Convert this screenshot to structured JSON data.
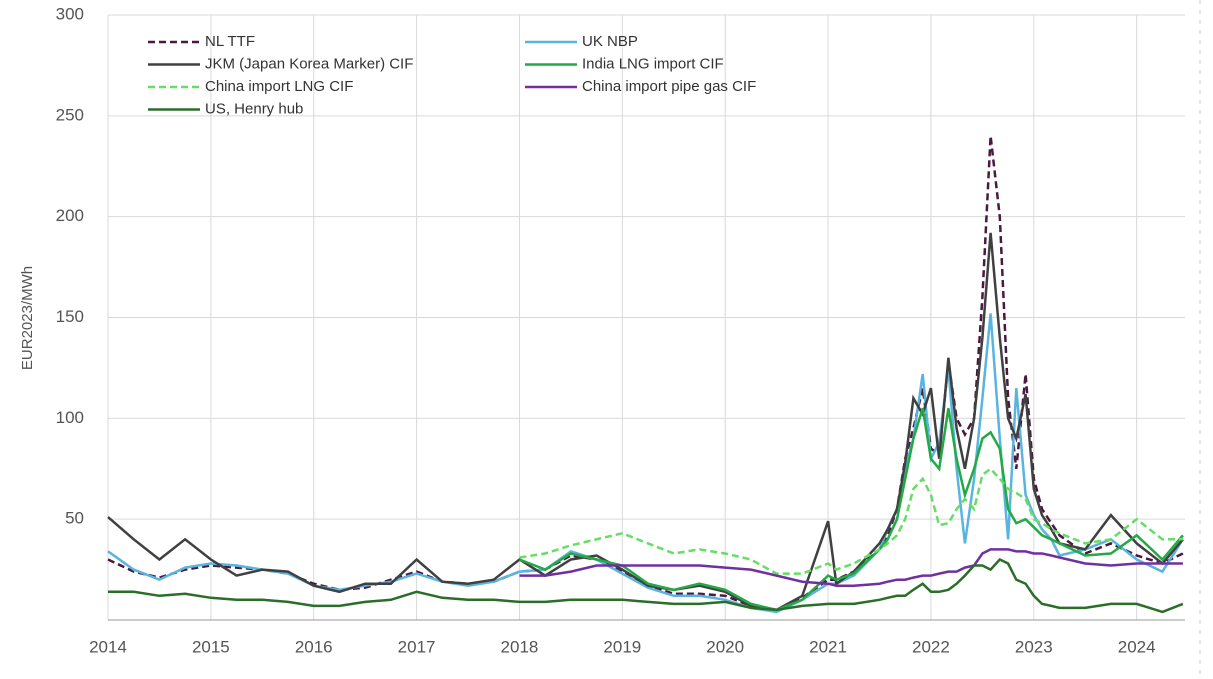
{
  "chart_data": {
    "type": "line",
    "y_label": "EUR2023/MWh",
    "x": [
      2014,
      2014.25,
      2014.5,
      2014.75,
      2015,
      2015.25,
      2015.5,
      2015.75,
      2016,
      2016.25,
      2016.5,
      2016.75,
      2017,
      2017.25,
      2017.5,
      2017.75,
      2018,
      2018.25,
      2018.5,
      2018.75,
      2019,
      2019.25,
      2019.5,
      2019.75,
      2020,
      2020.25,
      2020.5,
      2020.75,
      2021,
      2021.08,
      2021.25,
      2021.5,
      2021.58,
      2021.67,
      2021.75,
      2021.83,
      2021.92,
      2022,
      2022.08,
      2022.17,
      2022.25,
      2022.33,
      2022.42,
      2022.5,
      2022.58,
      2022.67,
      2022.75,
      2022.83,
      2022.92,
      2023,
      2023.08,
      2023.17,
      2023.25,
      2023.5,
      2023.75,
      2024,
      2024.25,
      2024.45
    ],
    "xlim": [
      2014,
      2024.47
    ],
    "xticks": [
      2014,
      2015,
      2016,
      2017,
      2018,
      2019,
      2020,
      2021,
      2022,
      2023,
      2024
    ],
    "ylim": [
      0,
      300
    ],
    "yticks": [
      50,
      100,
      150,
      200,
      250,
      300
    ],
    "grid": true,
    "series": [
      {
        "name": "NL TTF",
        "color": "#4a1942",
        "dashed": true,
        "values": [
          30,
          24,
          21,
          25,
          27,
          26,
          25,
          23,
          18,
          15,
          16,
          20,
          24,
          19,
          18,
          19,
          24,
          25,
          32,
          30,
          24,
          17,
          13,
          13,
          12,
          7,
          5,
          11,
          20,
          20,
          24,
          35,
          42,
          55,
          80,
          95,
          115,
          85,
          82,
          128,
          100,
          92,
          100,
          160,
          240,
          200,
          110,
          75,
          122,
          70,
          55,
          48,
          42,
          33,
          38,
          32,
          28,
          33
        ]
      },
      {
        "name": "UK NBP",
        "color": "#5ab4e0",
        "dashed": false,
        "values": [
          34,
          25,
          20,
          26,
          28,
          27,
          25,
          23,
          17,
          15,
          17,
          19,
          23,
          19,
          17,
          19,
          24,
          25,
          34,
          30,
          23,
          16,
          12,
          12,
          10,
          6,
          4,
          10,
          18,
          18,
          22,
          35,
          45,
          55,
          75,
          90,
          122,
          80,
          88,
          125,
          75,
          38,
          70,
          110,
          152,
          90,
          40,
          115,
          62,
          52,
          45,
          40,
          32,
          35,
          40,
          30,
          24,
          40
        ]
      },
      {
        "name": "JKM (Japan Korea Marker) CIF",
        "color": "#404040",
        "dashed": false,
        "values": [
          51,
          40,
          30,
          40,
          30,
          22,
          25,
          24,
          17,
          14,
          18,
          18,
          30,
          19,
          18,
          20,
          30,
          22,
          30,
          32,
          25,
          17,
          15,
          17,
          14,
          7,
          5,
          12,
          49,
          18,
          24,
          38,
          45,
          55,
          78,
          110,
          102,
          115,
          80,
          130,
          95,
          75,
          100,
          140,
          192,
          140,
          100,
          90,
          112,
          65,
          52,
          45,
          38,
          35,
          52,
          38,
          28,
          40
        ]
      },
      {
        "name": "India LNG import CIF",
        "color": "#22aa44",
        "dashed": false,
        "values": [
          null,
          null,
          null,
          null,
          null,
          null,
          null,
          null,
          null,
          null,
          null,
          null,
          null,
          null,
          null,
          null,
          30,
          25,
          33,
          30,
          27,
          18,
          15,
          18,
          15,
          8,
          5,
          10,
          22,
          20,
          23,
          35,
          40,
          50,
          70,
          90,
          105,
          80,
          75,
          105,
          80,
          62,
          75,
          90,
          93,
          85,
          55,
          48,
          50,
          46,
          42,
          40,
          38,
          32,
          33,
          42,
          30,
          42
        ]
      },
      {
        "name": "China import LNG CIF",
        "color": "#66dd66",
        "dashed": true,
        "values": [
          null,
          null,
          null,
          null,
          null,
          null,
          null,
          null,
          null,
          null,
          null,
          null,
          null,
          null,
          null,
          null,
          31,
          33,
          37,
          40,
          43,
          38,
          33,
          35,
          33,
          30,
          23,
          23,
          28,
          25,
          28,
          35,
          38,
          42,
          50,
          65,
          70,
          62,
          47,
          48,
          55,
          60,
          55,
          72,
          75,
          70,
          65,
          63,
          60,
          50,
          48,
          45,
          43,
          38,
          40,
          50,
          40,
          40
        ]
      },
      {
        "name": "China import pipe gas CIF",
        "color": "#7030a0",
        "dashed": false,
        "values": [
          null,
          null,
          null,
          null,
          null,
          null,
          null,
          null,
          null,
          null,
          null,
          null,
          null,
          null,
          null,
          null,
          22,
          22,
          24,
          27,
          27,
          27,
          27,
          27,
          26,
          25,
          22,
          19,
          18,
          17,
          17,
          18,
          19,
          20,
          20,
          21,
          22,
          22,
          23,
          24,
          24,
          26,
          27,
          33,
          35,
          35,
          35,
          34,
          34,
          33,
          33,
          32,
          31,
          28,
          27,
          28,
          28,
          28
        ]
      },
      {
        "name": "US, Henry hub",
        "color": "#2a6e2a",
        "dashed": false,
        "values": [
          14,
          14,
          12,
          13,
          11,
          10,
          10,
          9,
          7,
          7,
          9,
          10,
          14,
          11,
          10,
          10,
          9,
          9,
          10,
          10,
          10,
          9,
          8,
          8,
          9,
          6,
          5,
          7,
          8,
          8,
          8,
          10,
          11,
          12,
          12,
          15,
          18,
          14,
          14,
          15,
          18,
          22,
          27,
          27,
          25,
          30,
          28,
          20,
          18,
          12,
          8,
          7,
          6,
          6,
          8,
          8,
          4,
          8
        ]
      }
    ]
  }
}
